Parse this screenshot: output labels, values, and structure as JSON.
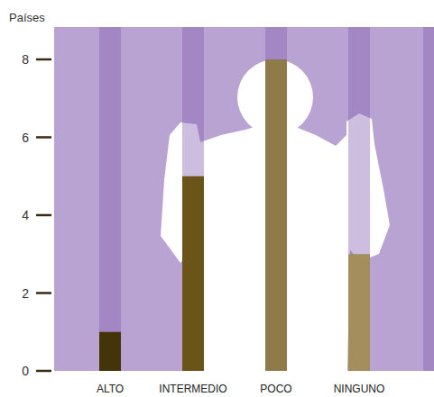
{
  "chart_data": {
    "type": "bar",
    "y_label": "Países",
    "categories": [
      "ALTO",
      "INTERMEDIO",
      "POCO",
      "NINGUNO"
    ],
    "values": [
      1,
      5,
      8,
      3
    ],
    "colors": [
      "#45330a",
      "#6b5418",
      "#8f7a4a",
      "#a38e5c"
    ],
    "ylim": [
      0,
      8
    ],
    "yticks": [
      0,
      2,
      4,
      6,
      8
    ],
    "grid": false
  }
}
